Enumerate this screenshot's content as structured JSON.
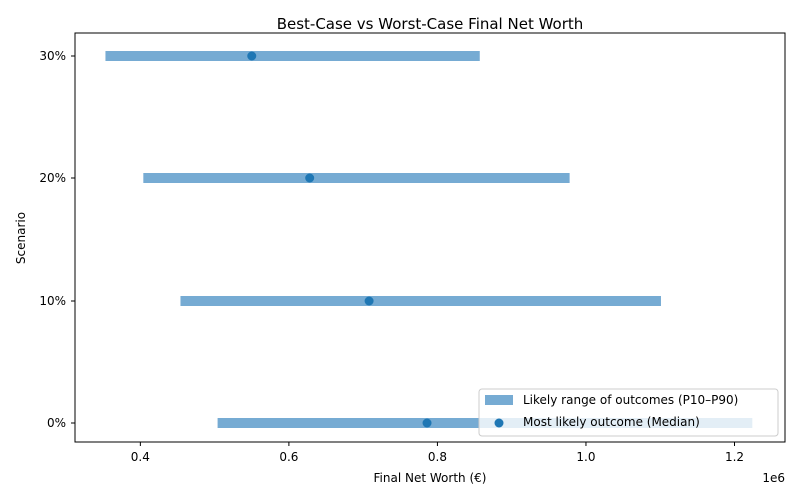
{
  "chart_data": {
    "type": "range-dot",
    "title": "Best-Case vs Worst-Case Final Net Worth",
    "xlabel": "Final Net Worth (€)",
    "ylabel": "Scenario",
    "x_offset_label": "1e6",
    "xlim": [
      0.312,
      1.268
    ],
    "x_ticks": [
      0.4,
      0.6,
      0.8,
      1.0,
      1.2
    ],
    "x_tick_labels": [
      "0.4",
      "0.6",
      "0.8",
      "1.0",
      "1.2"
    ],
    "categories": [
      "0%",
      "10%",
      "20%",
      "30%"
    ],
    "series": [
      {
        "name": "Likely range of outcomes (P10–P90)",
        "kind": "range",
        "color": "#76abd3",
        "low": [
          0.504,
          0.454,
          0.404,
          0.353
        ],
        "high": [
          1.224,
          1.101,
          0.978,
          0.857
        ]
      },
      {
        "name": "Most likely outcome (Median)",
        "kind": "point",
        "color": "#1f77b4",
        "values": [
          0.786,
          0.708,
          0.628,
          0.55
        ]
      }
    ],
    "grid": false,
    "legend": "lower-right"
  }
}
